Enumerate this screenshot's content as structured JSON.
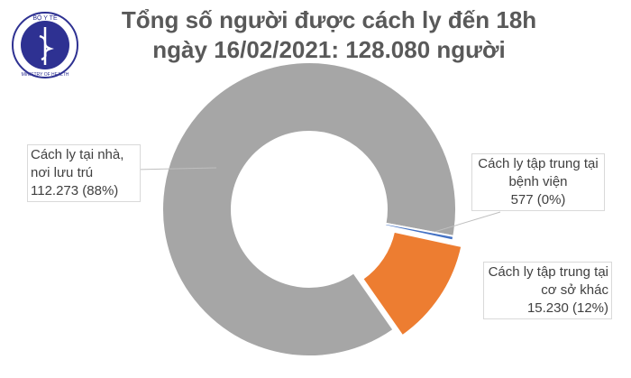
{
  "logo": {
    "top": "BỘ Y TẾ",
    "bottom": "MINISTRY OF HEALTH"
  },
  "chart_data": {
    "type": "donut",
    "title": "Tổng số người được cách ly đến 18h ngày 16/02/2021: 128.080 người",
    "categories": [
      "Cách ly tại nhà, nơi lưu trú",
      "Cách ly tập trung tại bệnh viện",
      "Cách ly tập trung tại cơ sở khác"
    ],
    "values": [
      112273,
      577,
      15230
    ],
    "value_labels": [
      "112.273 (88%)",
      "577 (0%)",
      "15.230 (12%)"
    ],
    "colors": [
      "#a6a6a6",
      "#4472c4",
      "#ed7d31"
    ]
  }
}
